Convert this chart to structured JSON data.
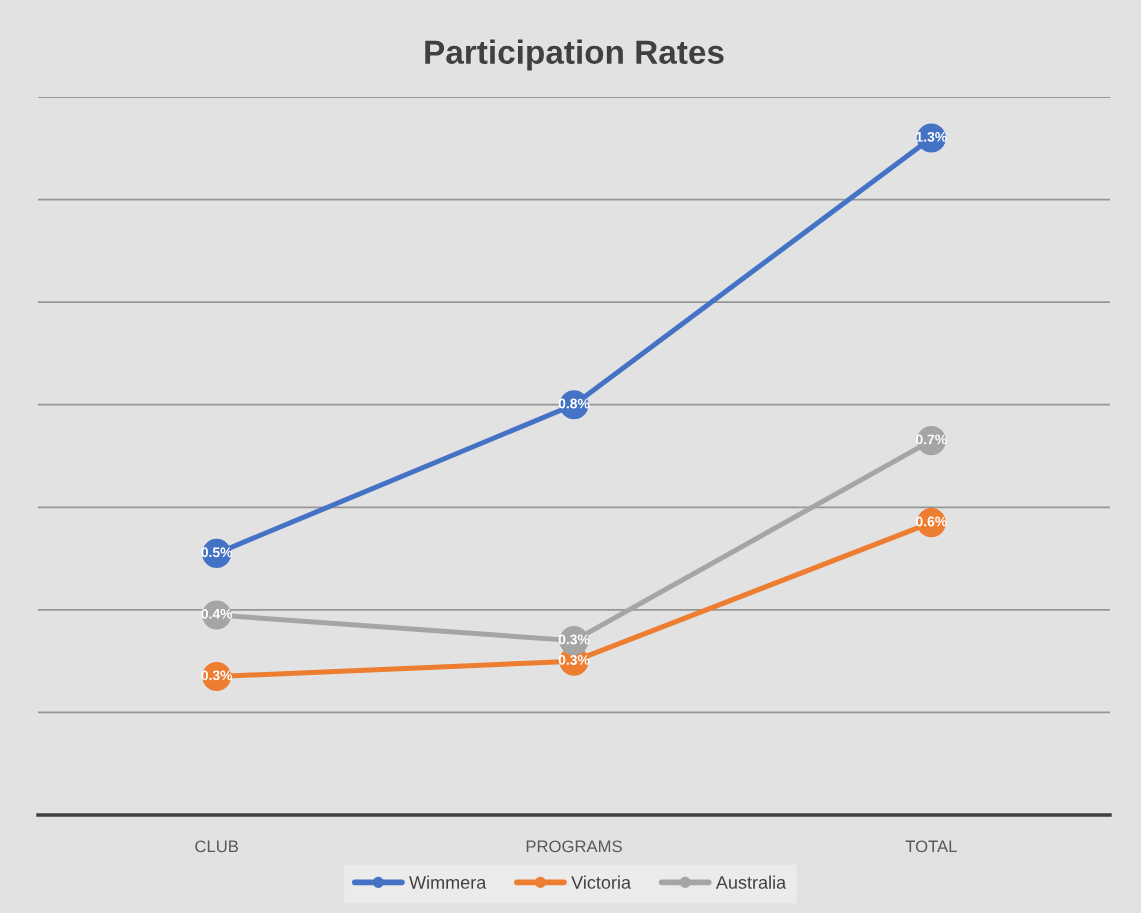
{
  "chart_data": {
    "type": "line",
    "title": "Participation Rates",
    "categories": [
      "CLUB",
      "PROGRAMS",
      "TOTAL"
    ],
    "series": [
      {
        "name": "Wimmera",
        "color": "#4472c4",
        "values": [
          0.51,
          0.8,
          1.32
        ],
        "value_labels": [
          "0.5%",
          "0.8%",
          "1.3%"
        ]
      },
      {
        "name": "Victoria",
        "color": "#ed7d31",
        "values": [
          0.27,
          0.3,
          0.57
        ],
        "value_labels": [
          "0.3%",
          "0.3%",
          "0.6%"
        ]
      },
      {
        "name": "Australia",
        "color": "#a5a5a5",
        "values": [
          0.39,
          0.34,
          0.73
        ],
        "value_labels": [
          "0.4%",
          "0.3%",
          "0.7%"
        ]
      }
    ],
    "tick_labels": "x",
    "grid": "y",
    "legend": "bottom",
    "marker": "circle",
    "line_style": "solid"
  }
}
